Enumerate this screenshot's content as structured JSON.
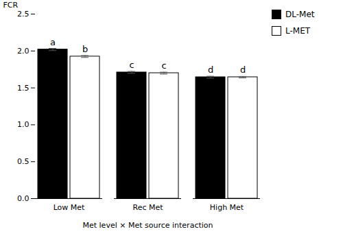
{
  "chart_data": {
    "type": "bar",
    "categories": [
      "Low Met",
      "Rec Met",
      "High Met"
    ],
    "series": [
      {
        "name": "DL-Met",
        "color": "#000000",
        "values": [
          2.02,
          1.71,
          1.645
        ],
        "errors": [
          0.015,
          0.013,
          0.013
        ],
        "annotations": [
          "a",
          "c",
          "d"
        ]
      },
      {
        "name": "L-MET",
        "color": "#ffffff",
        "values": [
          1.925,
          1.7,
          1.645
        ],
        "errors": [
          0.013,
          0.013,
          0.01
        ],
        "annotations": [
          "b",
          "c",
          "d"
        ]
      }
    ],
    "xlabel": "Met level × Met source interaction",
    "ylabel": "FCR",
    "ylim": [
      0,
      2.5
    ],
    "yticks": [
      0,
      0.5,
      1,
      1.5,
      2,
      2.5
    ],
    "grid": false,
    "legend": "upper right"
  }
}
